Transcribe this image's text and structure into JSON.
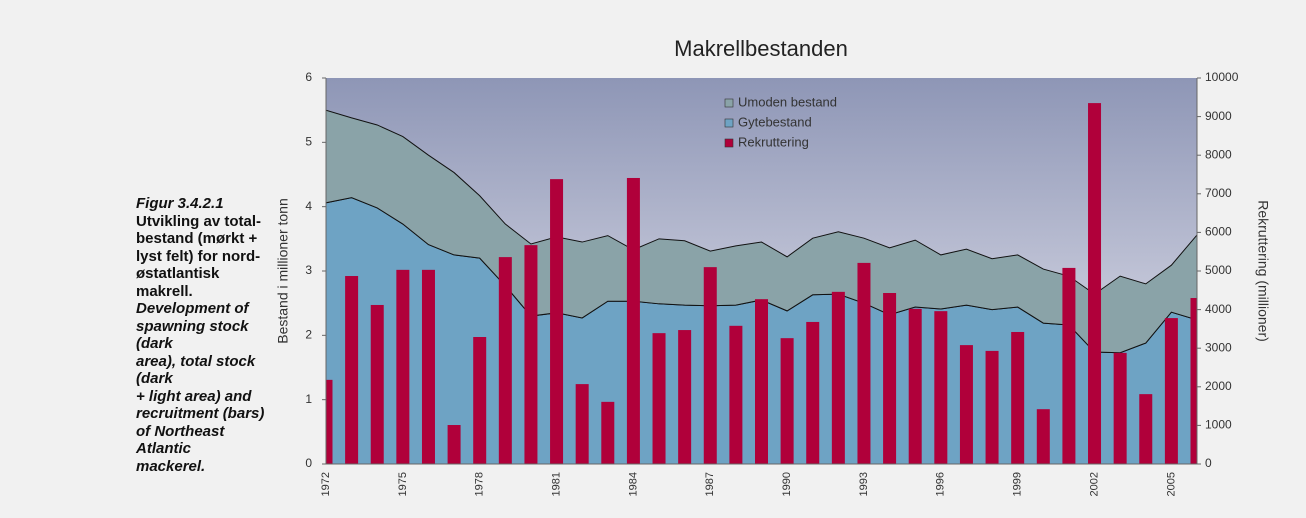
{
  "caption": {
    "figure": "Figur 3.4.2.1",
    "norwegian": [
      "Utvikling av total-",
      "bestand (mørkt +",
      "lyst felt) for nord-",
      "østatlantisk makrell."
    ],
    "english": [
      "Development of",
      "spawning stock (dark",
      "area), total stock (dark",
      "+ light area) and",
      "recruitment (bars)",
      "of Northeast Atlantic",
      "mackerel."
    ]
  },
  "chart_data": {
    "type": "combo",
    "title": "Makrellbestanden",
    "y_label": "Bestand i millioner tonn",
    "y2_label": "Rekruttering (millioner)",
    "categories": [
      "1972",
      null,
      null,
      "1975",
      null,
      null,
      "1978",
      null,
      null,
      "1981",
      null,
      null,
      "1984",
      null,
      null,
      "1987",
      null,
      null,
      "1990",
      null,
      null,
      "1993",
      null,
      null,
      "1996",
      null,
      null,
      "1999",
      null,
      null,
      "2002",
      null,
      null,
      "2005",
      null
    ],
    "series": [
      {
        "name": "Umoden bestand",
        "type": "area",
        "color": "#8aa3a8",
        "values": [
          1.44,
          1.24,
          1.29,
          1.36,
          1.39,
          1.28,
          0.97,
          0.96,
          1.12,
          1.18,
          1.18,
          1.02,
          0.8,
          1.01,
          1.0,
          0.85,
          0.92,
          0.9,
          0.84,
          0.88,
          0.97,
          1.01,
          1.04,
          1.04,
          0.84,
          0.87,
          0.79,
          0.81,
          0.84,
          0.76,
          0.9,
          1.19,
          0.92,
          0.73,
          1.32
        ]
      },
      {
        "name": "Gytebestand",
        "type": "area",
        "color": "#6ea3c4",
        "values": [
          4.06,
          4.14,
          3.98,
          3.73,
          3.41,
          3.25,
          3.2,
          2.77,
          2.3,
          2.35,
          2.27,
          2.53,
          2.53,
          2.49,
          2.47,
          2.46,
          2.47,
          2.55,
          2.38,
          2.63,
          2.64,
          2.5,
          2.32,
          2.44,
          2.41,
          2.47,
          2.4,
          2.44,
          2.19,
          2.16,
          1.74,
          1.73,
          1.88,
          2.36,
          2.24
        ]
      },
      {
        "name": "Rekruttering",
        "type": "bar",
        "axis": "y2",
        "color": "#b0003a",
        "values": [
          2180,
          4870,
          4120,
          5030,
          5030,
          1010,
          3290,
          5360,
          5670,
          7380,
          2070,
          1610,
          7410,
          3390,
          3470,
          5100,
          3580,
          4270,
          3260,
          3680,
          4460,
          5210,
          4430,
          4020,
          3960,
          3080,
          2930,
          3420,
          1420,
          5080,
          9350,
          2880,
          1810,
          3780,
          4300
        ]
      }
    ],
    "ylim": [
      0,
      6
    ],
    "yticks": [
      0,
      1,
      2,
      3,
      4,
      5,
      6
    ],
    "y2lim": [
      0,
      10000
    ],
    "y2ticks": [
      0,
      1000,
      2000,
      3000,
      4000,
      5000,
      6000,
      7000,
      8000,
      9000,
      10000
    ],
    "legend": "top"
  }
}
